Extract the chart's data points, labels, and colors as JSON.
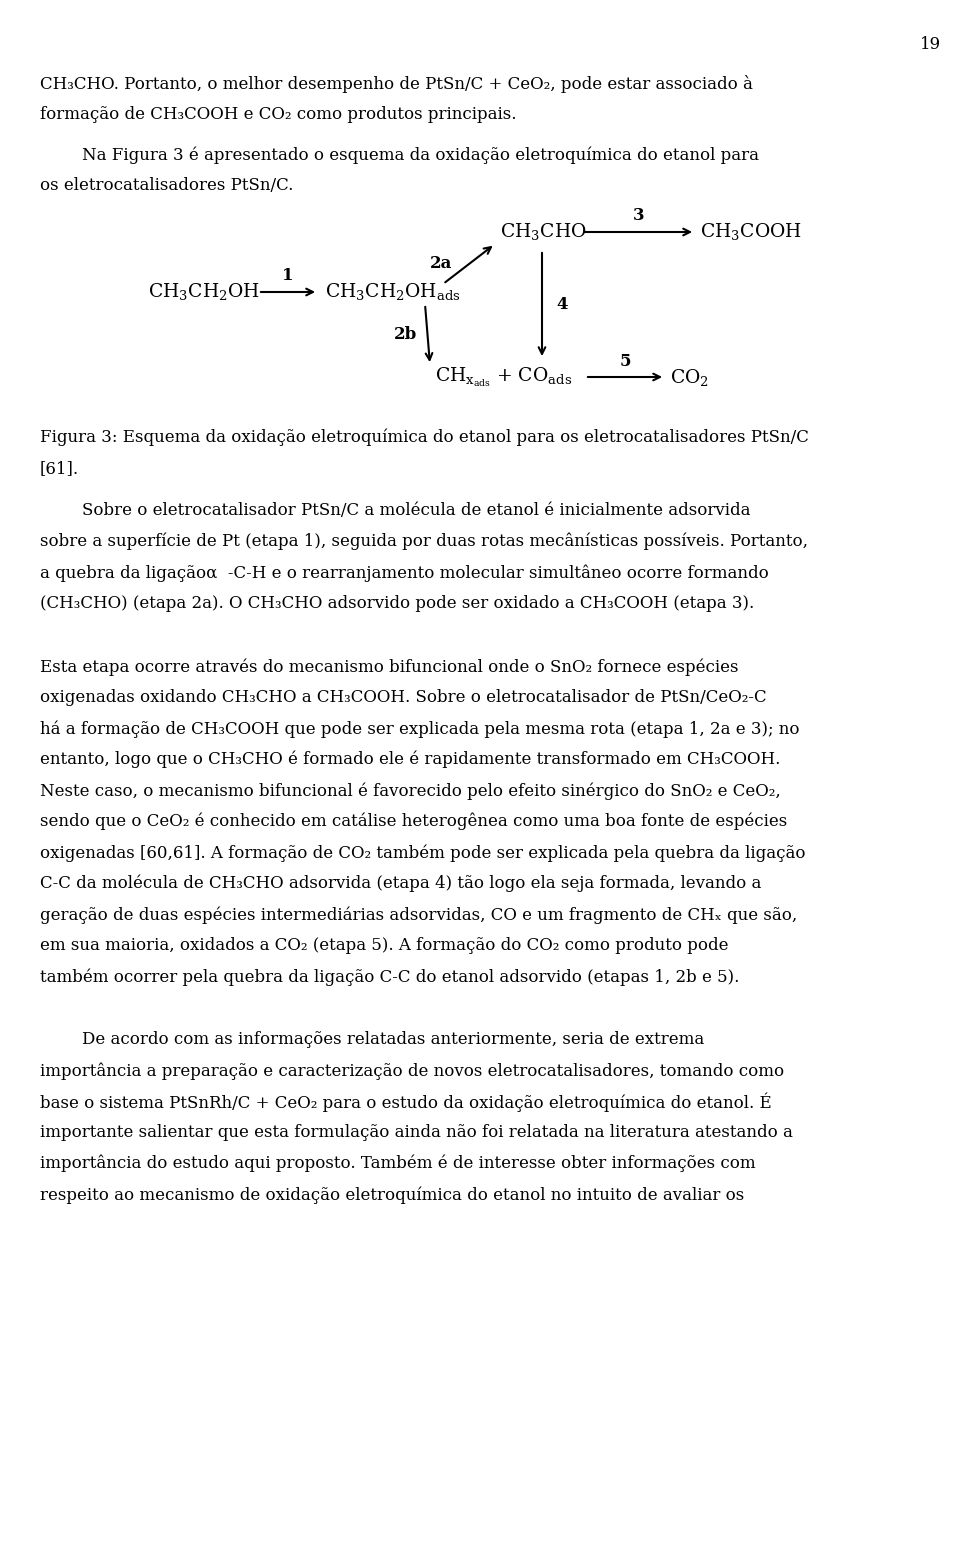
{
  "page_number": "19",
  "bg_color": "#ffffff",
  "text_color": "#000000",
  "font_size": 12.0,
  "paragraph1_line1": "CH₃CHO. Portanto, o melhor desempenho de PtSn/C + CeO₂, pode estar associado à",
  "paragraph1_line2": "formação de CH₃COOH e CO₂ como produtos principais.",
  "paragraph2_line1": "        Na Figura 3 é apresentado o esquema da oxidação eletroquímica do etanol para",
  "paragraph2_line2": "os eletrocatalisadores PtSn/C.",
  "caption_line1": "Figura 3: Esquema da oxidação eletroquímica do etanol para os eletrocatalisadores PtSn/C",
  "caption_line2": "[61].",
  "paragraph3_line1": "        Sobre o eletrocatalisador PtSn/C a molécula de etanol é inicialmente adsorvida",
  "paragraph3_line2": "sobre a superfície de Pt (etapa 1), seguida por duas rotas mecânísticas possíveis. Portanto,",
  "paragraph3_line3": "a quebra da ligaçãoα  -C-H e o rearranjamento molecular simultâneo ocorre formando",
  "paragraph3_line4": "(CH₃CHO) (etapa 2a). O CH₃CHO adsorvido pode ser oxidado a CH₃COOH (etapa 3).",
  "paragraph4_line1": "Esta etapa ocorre através do mecanismo bifuncional onde o SnO₂ fornece espécies",
  "paragraph4_line2": "oxigenadas oxidando CH₃CHO a CH₃COOH. Sobre o eletrocatalisador de PtSn/CeO₂-C",
  "paragraph4_line3": "há a formação de CH₃COOH que pode ser explicada pela mesma rota (etapa 1, 2a e 3); no",
  "paragraph4_line4": "entanto, logo que o CH₃CHO é formado ele é rapidamente transformado em CH₃COOH.",
  "paragraph4_line5": "Neste caso, o mecanismo bifuncional é favorecido pelo efeito sinérgico do SnO₂ e CeO₂,",
  "paragraph4_line6": "sendo que o CeO₂ é conhecido em catálise heterogênea como uma boa fonte de espécies",
  "paragraph4_line7": "oxigenadas [60,61]. A formação de CO₂ também pode ser explicada pela quebra da ligação",
  "paragraph4_line8": "C-C da molécula de CH₃CHO adsorvida (etapa 4) tão logo ela seja formada, levando a",
  "paragraph4_line9": "geração de duas espécies intermediárias adsorvidas, CO e um fragmento de CHₓ que são,",
  "paragraph4_line10": "em sua maioria, oxidados a CO₂ (etapa 5). A formação do CO₂ como produto pode",
  "paragraph4_line11": "também ocorrer pela quebra da ligação C-C do etanol adsorvido (etapas 1, 2b e 5).",
  "paragraph5_line1": "        De acordo com as informações relatadas anteriormente, seria de extrema",
  "paragraph5_line2": "importância a preparação e caracterização de novos eletrocatalisadores, tomando como",
  "paragraph5_line3": "base o sistema PtSnRh/C + CeO₂ para o estudo da oxidação eletroquímica do etanol. É",
  "paragraph5_line4": "importante salientar que esta formulação ainda não foi relatada na literatura atestando a",
  "paragraph5_line5": "importância do estudo aqui proposto. Também é de interesse obter informações com",
  "paragraph5_line6": "respeito ao mecanismo de oxidação eletroquímica do etanol no intuito de avaliar os"
}
